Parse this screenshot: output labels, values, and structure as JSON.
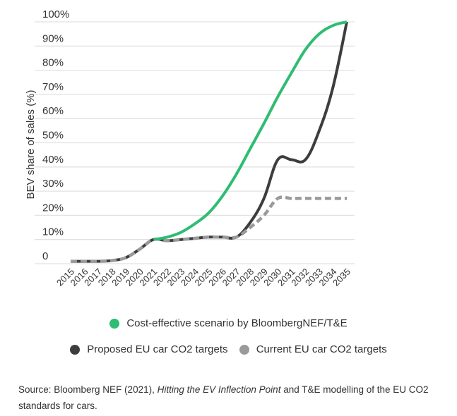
{
  "chart_data": {
    "type": "line",
    "ylabel": "BEV share of sales (%)",
    "xlabel": "",
    "x": [
      2015,
      2016,
      2017,
      2018,
      2019,
      2020,
      2021,
      2022,
      2023,
      2024,
      2025,
      2026,
      2027,
      2028,
      2029,
      2030,
      2031,
      2032,
      2033,
      2034,
      2035
    ],
    "x_tick_labels": [
      "2015",
      "2016",
      "2017",
      "2018",
      "2019",
      "2020",
      "2021",
      "2022",
      "2023",
      "2024",
      "2025",
      "2026",
      "2027",
      "2028",
      "2029",
      "2030",
      "2031",
      "2032",
      "2033",
      "2034",
      "2035"
    ],
    "ylim": [
      0,
      100
    ],
    "y_ticks": [
      0,
      10,
      20,
      30,
      40,
      50,
      60,
      70,
      80,
      90,
      100
    ],
    "y_tick_labels": [
      "0",
      "10%",
      "20%",
      "30%",
      "40%",
      "50%",
      "60%",
      "70%",
      "80%",
      "90%",
      "100%"
    ],
    "grid": "horizontal",
    "legend_position": "bottom",
    "series": [
      {
        "name": "Cost-effective scenario by BloombergNEF/T&E",
        "color": "#2ebd72",
        "style": "solid",
        "values": [
          null,
          null,
          null,
          null,
          null,
          null,
          10,
          11,
          13,
          16.5,
          21,
          28,
          37,
          47.5,
          58,
          69,
          79,
          88.5,
          95,
          98.5,
          100
        ]
      },
      {
        "name": "Proposed EU car CO2 targets",
        "color": "#3d3d3d",
        "style": "solid",
        "values": [
          1,
          1,
          1,
          1.3,
          2.5,
          6,
          10,
          9.5,
          10,
          10.5,
          11,
          11,
          11,
          17,
          27,
          43,
          43,
          43,
          55,
          73,
          100
        ]
      },
      {
        "name": "Current EU car CO2 targets",
        "color": "#9a9a9a",
        "style": "dashed",
        "values": [
          1,
          1,
          1,
          1.3,
          2.5,
          6,
          10,
          9.5,
          10,
          10.5,
          11,
          11,
          11,
          15,
          20,
          27,
          27,
          27,
          27,
          27,
          27
        ]
      }
    ]
  },
  "source": {
    "prefix": "Source: Bloomberg NEF (2021), ",
    "italic": "Hitting the EV Inflection Point",
    "suffix": " and T&E modelling of the EU CO2 standards for cars."
  }
}
